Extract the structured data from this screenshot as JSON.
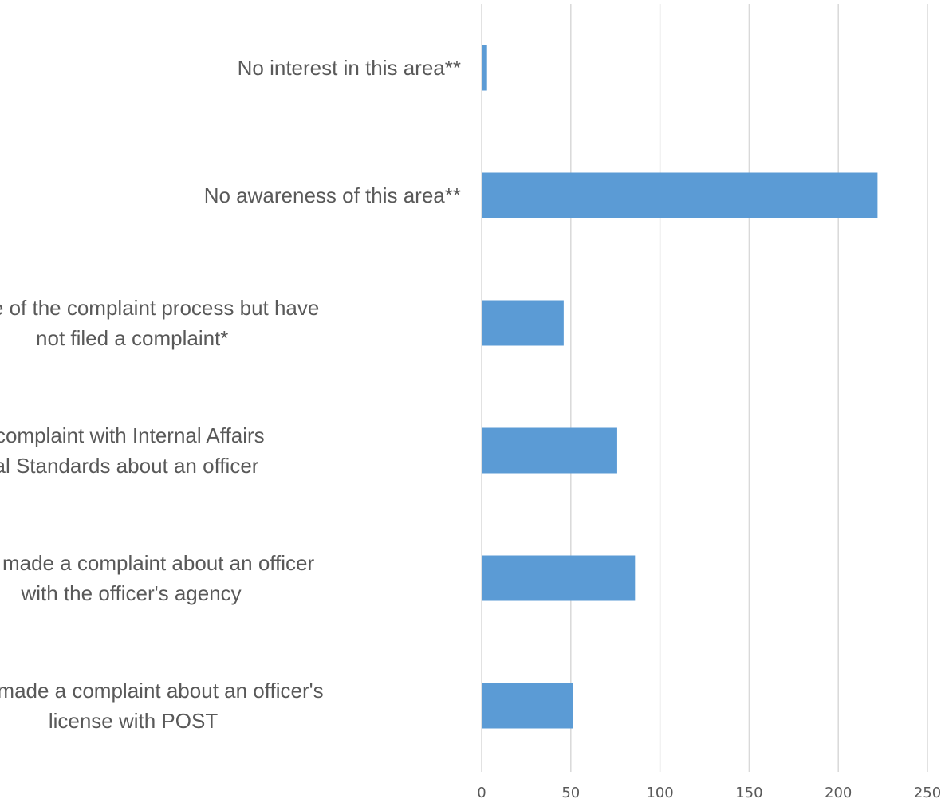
{
  "chart_data": {
    "type": "bar",
    "orientation": "horizontal",
    "categories": [
      [
        "No interest in this area**"
      ],
      [
        "No awareness of this area**"
      ],
      [
        "Aware of the complaint process but have",
        "not filed a complaint*"
      ],
      [
        "Have made a complaint with Internal Affairs",
        "or Professional Standards about an officer"
      ],
      [
        "Have made a complaint about an officer",
        "with the officer's agency"
      ],
      [
        "Have made a complaint about an officer's",
        "license with POST"
      ]
    ],
    "values": [
      3,
      222,
      46,
      76,
      86,
      51
    ],
    "xlim": [
      0,
      250
    ],
    "xticks": [
      0,
      50,
      100,
      150,
      200,
      250
    ],
    "grid": true,
    "bar_color": "#5b9bd5",
    "grid_color": "#d9d9d9",
    "text_color": "#595959"
  }
}
